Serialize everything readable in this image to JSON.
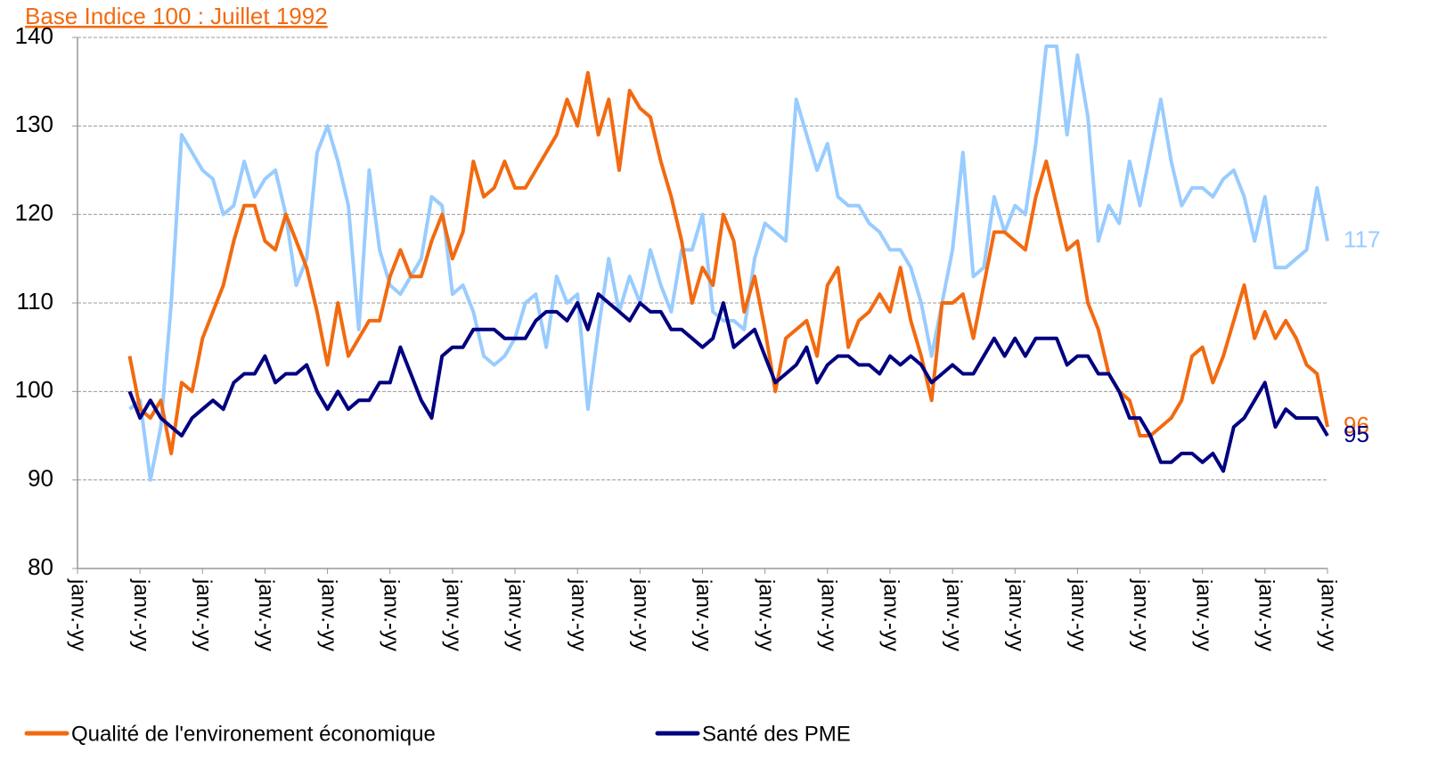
{
  "chart_data": {
    "type": "line",
    "title": "Base Indice 100 : Juillet 1992",
    "categories": [
      "janv.-yy",
      null,
      null,
      null,
      null,
      null,
      "janv.-yy",
      null,
      null,
      null,
      null,
      null,
      "janv.-yy",
      null,
      null,
      null,
      null,
      null,
      "janv.-yy",
      null,
      null,
      null,
      null,
      null,
      "janv.-yy",
      null,
      null,
      null,
      null,
      null,
      "janv.-yy",
      null,
      null,
      null,
      null,
      null,
      "janv.-yy",
      null,
      null,
      null,
      null,
      null,
      "janv.-yy",
      null,
      null,
      null,
      null,
      null,
      "janv.-yy",
      null,
      null,
      null,
      null,
      null,
      "janv.-yy",
      null,
      null,
      null,
      null,
      null,
      "janv.-yy",
      null,
      null,
      null,
      null,
      null,
      "janv.-yy",
      null,
      null,
      null,
      null,
      null,
      "janv.-yy",
      null,
      null,
      null,
      null,
      null,
      "janv.-yy",
      null,
      null,
      null,
      null,
      null,
      "janv.-yy",
      null,
      null,
      null,
      null,
      null,
      "janv.-yy",
      null,
      null,
      null,
      null,
      null,
      "janv.-yy",
      null,
      null,
      null,
      null,
      null,
      "janv.-yy",
      null,
      null,
      null,
      null,
      null,
      "janv.-yy",
      null,
      null,
      null,
      null,
      null,
      "janv.-yy",
      null,
      null,
      null,
      null,
      null,
      "janv.-yy"
    ],
    "series": [
      {
        "name": "Qualité de l'environement économique",
        "color": "#f26a10",
        "values": [
          null,
          null,
          null,
          null,
          null,
          104,
          98,
          97,
          99,
          93,
          101,
          100,
          106,
          109,
          112,
          117,
          121,
          121,
          117,
          116,
          120,
          117,
          114,
          109,
          103,
          110,
          104,
          106,
          108,
          108,
          113,
          116,
          113,
          113,
          117,
          120,
          115,
          118,
          126,
          122,
          123,
          126,
          123,
          123,
          125,
          127,
          129,
          133,
          130,
          136,
          129,
          133,
          125,
          134,
          132,
          131,
          126,
          122,
          117,
          110,
          114,
          112,
          120,
          117,
          109,
          113,
          107,
          100,
          106,
          107,
          108,
          104,
          112,
          114,
          105,
          108,
          109,
          111,
          109,
          114,
          108,
          104,
          99,
          110,
          110,
          111,
          106,
          112,
          118,
          118,
          117,
          116,
          122,
          126,
          121,
          116,
          117,
          110,
          107,
          102,
          100,
          99,
          95,
          95,
          96,
          97,
          99,
          104,
          105,
          101,
          104,
          108,
          112,
          106,
          109,
          106,
          108,
          106,
          103,
          102,
          96
        ]
      },
      {
        "name": "Santé des PME",
        "color": "#000080",
        "values": [
          null,
          null,
          null,
          null,
          null,
          100,
          97,
          99,
          97,
          96,
          95,
          97,
          98,
          99,
          98,
          101,
          102,
          102,
          104,
          101,
          102,
          102,
          103,
          100,
          98,
          100,
          98,
          99,
          99,
          101,
          101,
          105,
          102,
          99,
          97,
          104,
          105,
          105,
          107,
          107,
          107,
          106,
          106,
          106,
          108,
          109,
          109,
          108,
          110,
          107,
          111,
          110,
          109,
          108,
          110,
          109,
          109,
          107,
          107,
          106,
          105,
          106,
          110,
          105,
          106,
          107,
          104,
          101,
          102,
          103,
          105,
          101,
          103,
          104,
          104,
          103,
          103,
          102,
          104,
          103,
          104,
          103,
          101,
          102,
          103,
          102,
          102,
          104,
          106,
          104,
          106,
          104,
          106,
          106,
          106,
          103,
          104,
          104,
          102,
          102,
          100,
          97,
          97,
          95,
          92,
          92,
          93,
          93,
          92,
          93,
          91,
          96,
          97,
          99,
          101,
          96,
          98,
          97,
          97,
          97,
          95
        ]
      },
      {
        "color": "#99ccff",
        "values": [
          null,
          null,
          null,
          null,
          null,
          98,
          99,
          90,
          96,
          110,
          129,
          127,
          125,
          124,
          120,
          121,
          126,
          122,
          124,
          125,
          120,
          112,
          115,
          127,
          130,
          126,
          121,
          107,
          125,
          116,
          112,
          111,
          113,
          115,
          122,
          121,
          111,
          112,
          109,
          104,
          103,
          104,
          106,
          110,
          111,
          105,
          113,
          110,
          111,
          98,
          107,
          115,
          109,
          113,
          110,
          116,
          112,
          109,
          116,
          116,
          120,
          109,
          108,
          108,
          107,
          115,
          119,
          118,
          117,
          133,
          129,
          125,
          128,
          122,
          121,
          121,
          119,
          118,
          116,
          116,
          114,
          110,
          104,
          110,
          116,
          127,
          113,
          114,
          122,
          118,
          121,
          120,
          128,
          139,
          139,
          129,
          138,
          131,
          117,
          121,
          119,
          126,
          121,
          127,
          133,
          126,
          121,
          123,
          123,
          122,
          124,
          125,
          122,
          117,
          122,
          114,
          114,
          115,
          116,
          123,
          117
        ]
      }
    ],
    "ylim": [
      80,
      140
    ],
    "yticks": [
      80,
      90,
      100,
      110,
      120,
      130,
      140
    ],
    "grid": true
  }
}
